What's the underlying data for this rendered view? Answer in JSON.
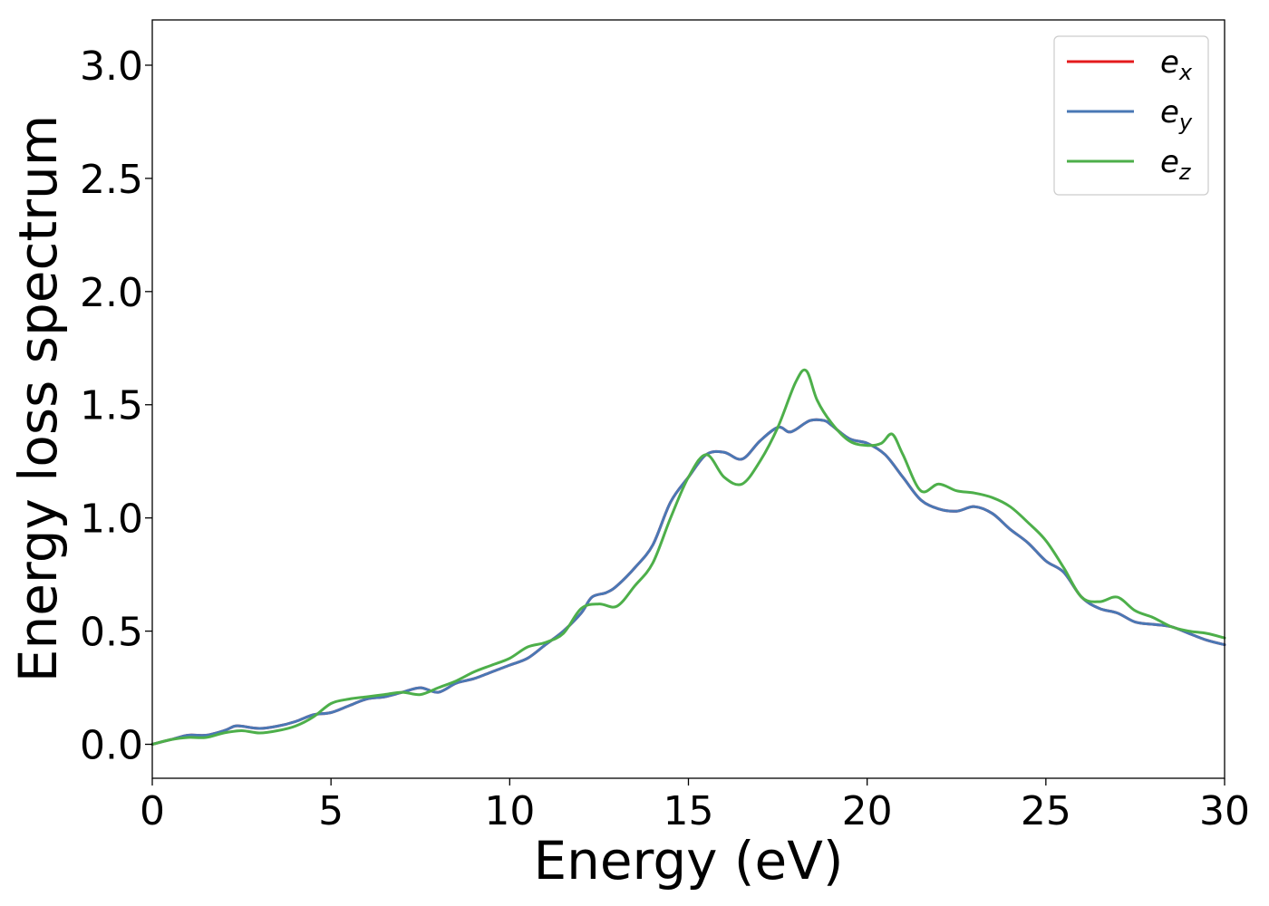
{
  "chart_data": {
    "type": "line",
    "title": "",
    "xlabel": "Energy (eV)",
    "ylabel": "Energy loss spectrum",
    "xlim": [
      0,
      30
    ],
    "ylim": [
      -0.15,
      3.2
    ],
    "xticks": [
      0,
      5,
      10,
      15,
      20,
      25,
      30
    ],
    "xtick_labels": [
      "0",
      "5",
      "10",
      "15",
      "20",
      "25",
      "30"
    ],
    "yticks": [
      0.0,
      0.5,
      1.0,
      1.5,
      2.0,
      2.5,
      3.0
    ],
    "ytick_labels": [
      "0.0",
      "0.5",
      "1.0",
      "1.5",
      "2.0",
      "2.5",
      "3.0"
    ],
    "grid": false,
    "legend_position": "top-right",
    "series": [
      {
        "name": "e_x",
        "legend_base": "e",
        "legend_sub": "x",
        "color": "#e41a1c",
        "x": [
          0,
          0.5,
          1,
          1.5,
          2,
          2.3,
          2.5,
          3,
          3.5,
          4,
          4.5,
          5,
          5.5,
          6,
          6.5,
          7,
          7.5,
          8,
          8.5,
          9,
          9.5,
          10,
          10.5,
          11,
          11.5,
          12,
          12.3,
          12.7,
          13,
          13.5,
          14,
          14.5,
          15,
          15.5,
          16,
          16.5,
          17,
          17.5,
          17.8,
          18,
          18.4,
          18.8,
          19,
          19.5,
          20,
          20.5,
          21,
          21.5,
          22,
          22.5,
          23,
          23.5,
          24,
          24.5,
          25,
          25.5,
          26,
          26.5,
          27,
          27.5,
          28,
          28.5,
          29,
          29.5,
          30
        ],
        "y": [
          0.0,
          0.02,
          0.04,
          0.04,
          0.06,
          0.08,
          0.08,
          0.07,
          0.08,
          0.1,
          0.13,
          0.14,
          0.17,
          0.2,
          0.21,
          0.23,
          0.25,
          0.23,
          0.27,
          0.29,
          0.32,
          0.35,
          0.38,
          0.44,
          0.5,
          0.58,
          0.65,
          0.67,
          0.7,
          0.78,
          0.88,
          1.07,
          1.18,
          1.28,
          1.29,
          1.26,
          1.34,
          1.4,
          1.38,
          1.39,
          1.43,
          1.43,
          1.41,
          1.35,
          1.33,
          1.28,
          1.18,
          1.08,
          1.04,
          1.03,
          1.05,
          1.02,
          0.95,
          0.89,
          0.81,
          0.76,
          0.65,
          0.6,
          0.58,
          0.54,
          0.53,
          0.52,
          0.49,
          0.46,
          0.44
        ]
      },
      {
        "name": "e_y",
        "legend_base": "e",
        "legend_sub": "y",
        "color": "#4a78b5",
        "x": [
          0,
          0.5,
          1,
          1.5,
          2,
          2.3,
          2.5,
          3,
          3.5,
          4,
          4.5,
          5,
          5.5,
          6,
          6.5,
          7,
          7.5,
          8,
          8.5,
          9,
          9.5,
          10,
          10.5,
          11,
          11.5,
          12,
          12.3,
          12.7,
          13,
          13.5,
          14,
          14.5,
          15,
          15.5,
          16,
          16.5,
          17,
          17.5,
          17.8,
          18,
          18.4,
          18.8,
          19,
          19.5,
          20,
          20.5,
          21,
          21.5,
          22,
          22.5,
          23,
          23.5,
          24,
          24.5,
          25,
          25.5,
          26,
          26.5,
          27,
          27.5,
          28,
          28.5,
          29,
          29.5,
          30
        ],
        "y": [
          0.0,
          0.02,
          0.04,
          0.04,
          0.06,
          0.08,
          0.08,
          0.07,
          0.08,
          0.1,
          0.13,
          0.14,
          0.17,
          0.2,
          0.21,
          0.23,
          0.25,
          0.23,
          0.27,
          0.29,
          0.32,
          0.35,
          0.38,
          0.44,
          0.5,
          0.58,
          0.65,
          0.67,
          0.7,
          0.78,
          0.88,
          1.07,
          1.18,
          1.28,
          1.29,
          1.26,
          1.34,
          1.4,
          1.38,
          1.39,
          1.43,
          1.43,
          1.41,
          1.35,
          1.33,
          1.28,
          1.18,
          1.08,
          1.04,
          1.03,
          1.05,
          1.02,
          0.95,
          0.89,
          0.81,
          0.76,
          0.65,
          0.6,
          0.58,
          0.54,
          0.53,
          0.52,
          0.49,
          0.46,
          0.44
        ]
      },
      {
        "name": "e_z",
        "legend_base": "e",
        "legend_sub": "z",
        "color": "#4daf4a",
        "x": [
          0,
          0.5,
          1,
          1.5,
          2,
          2.5,
          3,
          3.5,
          4,
          4.5,
          5,
          5.5,
          6,
          6.5,
          7,
          7.5,
          8,
          8.5,
          9,
          9.5,
          10,
          10.5,
          11,
          11.5,
          12,
          12.5,
          13,
          13.5,
          14,
          14.5,
          15,
          15.5,
          16,
          16.5,
          17,
          17.5,
          18,
          18.3,
          18.6,
          19,
          19.5,
          20,
          20.4,
          20.7,
          21,
          21.5,
          22,
          22.5,
          23,
          23.5,
          24,
          24.5,
          25,
          25.5,
          26,
          26.5,
          27,
          27.5,
          28,
          28.5,
          29,
          29.5,
          30
        ],
        "y": [
          0.0,
          0.02,
          0.03,
          0.03,
          0.05,
          0.06,
          0.05,
          0.06,
          0.08,
          0.12,
          0.18,
          0.2,
          0.21,
          0.22,
          0.23,
          0.22,
          0.25,
          0.28,
          0.32,
          0.35,
          0.38,
          0.43,
          0.45,
          0.49,
          0.6,
          0.62,
          0.61,
          0.7,
          0.8,
          1.0,
          1.18,
          1.28,
          1.18,
          1.15,
          1.25,
          1.4,
          1.6,
          1.65,
          1.52,
          1.42,
          1.34,
          1.32,
          1.33,
          1.37,
          1.28,
          1.12,
          1.15,
          1.12,
          1.11,
          1.09,
          1.05,
          0.98,
          0.9,
          0.78,
          0.65,
          0.63,
          0.65,
          0.59,
          0.56,
          0.52,
          0.5,
          0.49,
          0.47
        ]
      }
    ]
  }
}
